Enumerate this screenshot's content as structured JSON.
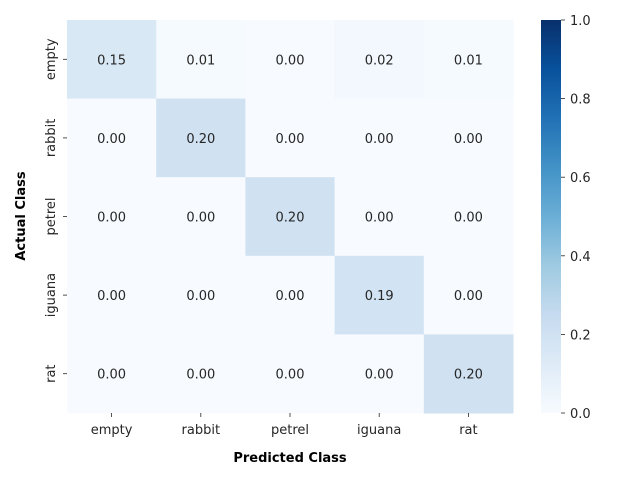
{
  "chart_data": {
    "type": "heatmap",
    "xlabel": "Predicted Class",
    "ylabel": "Actual Class",
    "x_categories": [
      "empty",
      "rabbit",
      "petrel",
      "iguana",
      "rat"
    ],
    "y_categories": [
      "empty",
      "rabbit",
      "petrel",
      "iguana",
      "rat"
    ],
    "values": [
      [
        0.15,
        0.01,
        0.0,
        0.02,
        0.01
      ],
      [
        0.0,
        0.2,
        0.0,
        0.0,
        0.0
      ],
      [
        0.0,
        0.0,
        0.2,
        0.0,
        0.0
      ],
      [
        0.0,
        0.0,
        0.0,
        0.19,
        0.0
      ],
      [
        0.0,
        0.0,
        0.0,
        0.0,
        0.2
      ]
    ],
    "cell_labels": [
      [
        "0.15",
        "0.01",
        "0.00",
        "0.02",
        "0.01"
      ],
      [
        "0.00",
        "0.20",
        "0.00",
        "0.00",
        "0.00"
      ],
      [
        "0.00",
        "0.00",
        "0.20",
        "0.00",
        "0.00"
      ],
      [
        "0.00",
        "0.00",
        "0.00",
        "0.19",
        "0.00"
      ],
      [
        "0.00",
        "0.00",
        "0.00",
        "0.00",
        "0.20"
      ]
    ],
    "colorbar": {
      "range": [
        0.0,
        1.0
      ],
      "ticks": [
        "0.0",
        "0.2",
        "0.4",
        "0.6",
        "0.8",
        "1.0"
      ],
      "colormap": "Blues"
    }
  }
}
